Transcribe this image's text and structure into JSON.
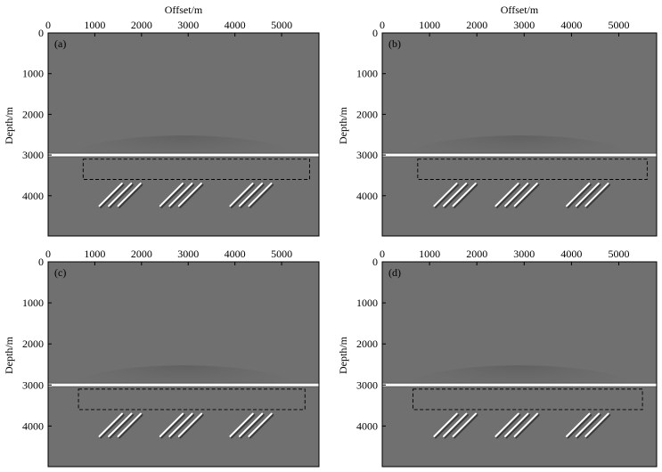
{
  "chart_data": [
    {
      "type": "heatmap",
      "panel_label": "(a)",
      "xlabel": "Offset/m",
      "ylabel": "Depth/m",
      "xlim": [
        0,
        5800
      ],
      "ylim": [
        0,
        4990
      ],
      "x_ticks": [
        0,
        1000,
        2000,
        3000,
        4000,
        5000
      ],
      "y_ticks": [
        0,
        1000,
        2000,
        3000,
        4000
      ],
      "reflector_depth": 3000,
      "dashed_box": {
        "x": [
          750,
          5600
        ],
        "y": [
          3100,
          3600
        ]
      },
      "fault_groups": [
        {
          "x_start": [
            1200,
            1400,
            1600
          ],
          "depth_range": [
            3700,
            4250
          ]
        },
        {
          "x_start": [
            2500,
            2700,
            2900
          ],
          "depth_range": [
            3700,
            4250
          ]
        },
        {
          "x_start": [
            4000,
            4200,
            4400
          ],
          "depth_range": [
            3700,
            4250
          ]
        }
      ]
    },
    {
      "type": "heatmap",
      "panel_label": "(b)",
      "xlabel": "Offset/m",
      "ylabel": "Depth/m",
      "xlim": [
        0,
        5800
      ],
      "ylim": [
        0,
        4990
      ],
      "x_ticks": [
        0,
        1000,
        2000,
        3000,
        4000,
        5000
      ],
      "y_ticks": [
        0,
        1000,
        2000,
        3000,
        4000
      ],
      "reflector_depth": 3000,
      "dashed_box": {
        "x": [
          750,
          5600
        ],
        "y": [
          3100,
          3600
        ]
      },
      "fault_groups": [
        {
          "x_start": [
            1200,
            1400,
            1600
          ],
          "depth_range": [
            3700,
            4250
          ]
        },
        {
          "x_start": [
            2500,
            2700,
            2900
          ],
          "depth_range": [
            3700,
            4250
          ]
        },
        {
          "x_start": [
            4000,
            4200,
            4400
          ],
          "depth_range": [
            3700,
            4250
          ]
        }
      ]
    },
    {
      "type": "heatmap",
      "panel_label": "(c)",
      "xlabel": "",
      "ylabel": "Depth/m",
      "xlim": [
        0,
        5800
      ],
      "ylim": [
        0,
        4990
      ],
      "x_ticks": [
        0,
        1000,
        2000,
        3000,
        4000,
        5000
      ],
      "y_ticks": [
        0,
        1000,
        2000,
        3000,
        4000
      ],
      "reflector_depth": 3000,
      "dashed_box": {
        "x": [
          650,
          5500
        ],
        "y": [
          3100,
          3600
        ]
      },
      "fault_groups": [
        {
          "x_start": [
            1200,
            1400,
            1600
          ],
          "depth_range": [
            3700,
            4250
          ]
        },
        {
          "x_start": [
            2500,
            2700,
            2900
          ],
          "depth_range": [
            3700,
            4250
          ]
        },
        {
          "x_start": [
            4000,
            4200,
            4400
          ],
          "depth_range": [
            3700,
            4250
          ]
        }
      ]
    },
    {
      "type": "heatmap",
      "panel_label": "(d)",
      "xlabel": "",
      "ylabel": "Depth/m",
      "xlim": [
        0,
        5800
      ],
      "ylim": [
        0,
        4990
      ],
      "x_ticks": [
        0,
        1000,
        2000,
        3000,
        4000,
        5000
      ],
      "y_ticks": [
        0,
        1000,
        2000,
        3000,
        4000
      ],
      "reflector_depth": 3000,
      "dashed_box": {
        "x": [
          650,
          5500
        ],
        "y": [
          3100,
          3600
        ]
      },
      "fault_groups": [
        {
          "x_start": [
            1200,
            1400,
            1600
          ],
          "depth_range": [
            3700,
            4250
          ]
        },
        {
          "x_start": [
            2500,
            2700,
            2900
          ],
          "depth_range": [
            3700,
            4250
          ]
        },
        {
          "x_start": [
            4000,
            4200,
            4400
          ],
          "depth_range": [
            3700,
            4250
          ]
        }
      ]
    }
  ],
  "colors": {
    "background": "#707070",
    "reflector": "#ffffff",
    "fault": "#ffffff",
    "dash": "#000000"
  }
}
